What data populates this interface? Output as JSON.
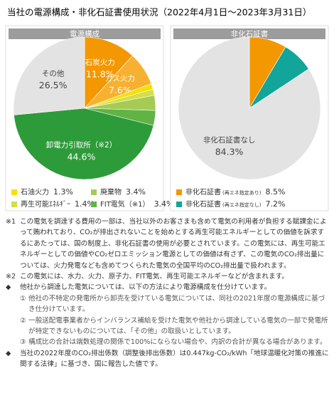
{
  "title": "当社の電源構成・非化石証書使用状況（2022年4月1日〜2023年3月31日）",
  "chart_data": [
    {
      "type": "pie",
      "title": "電源構成",
      "categories": [
        "石炭火力",
        "ガス火力",
        "石油火力",
        "再生可能ｴﾈﾙｷﾞｰ",
        "廃棄物",
        "FIT電気（※1）",
        "卸電力引取所（※2）",
        "その他"
      ],
      "values": [
        11.8,
        7.6,
        1.3,
        1.4,
        3.4,
        3.4,
        44.6,
        26.5
      ],
      "value_labels": [
        "11.8%",
        "7.6%",
        "1.3%",
        "1.4%",
        "3.4%",
        "3.4%",
        "44.6%",
        "26.5%"
      ],
      "colors": [
        "#f39800",
        "#f7b030",
        "#f5e100",
        "#d3de4a",
        "#a5cb55",
        "#5fb445",
        "#2e9b3a",
        "#e3e3e3"
      ],
      "label_position": [
        "inside",
        "inside",
        "legend",
        "legend",
        "legend",
        "legend",
        "inside",
        "inside"
      ]
    },
    {
      "type": "pie",
      "title": "非化石証書",
      "categories": [
        "非化石証書",
        "非化石証書",
        "非化石証書なし"
      ],
      "category_notes": [
        "(再エネ指定あり)",
        "(再エネ指定なし)",
        null
      ],
      "values": [
        8.5,
        7.2,
        84.3
      ],
      "value_labels": [
        "8.5%",
        "7.2%",
        "84.3%"
      ],
      "colors": [
        "#f39800",
        "#12a59a",
        "#e3e3e3"
      ],
      "label_position": [
        "legend",
        "legend",
        "inside"
      ]
    }
  ],
  "notes": [
    {
      "marker": "※1",
      "text": "この電気を調達する費用の一部は、当社以外のお客さまも含めて電気の利用者が負担する賦課金によって賄われており、CO₂が排出されないことを始めとする再生可能エネルギーとしての価値を訴求するにあたっては、国の制度上、非化石証書の使用が必要とされています。この電気には、再生可能エネルギーとしての価値やCO₂ゼロエミッション電源としての価値は有さず、この電気のCO₂排出量については、火力発電なども含めてつくられた電気の全国平均のCO₂排出量で扱われます。",
      "items": []
    },
    {
      "marker": "※2",
      "text": "この電気には、水力、火力、原子力、FIT電気、再生可能エネルギーなどが含まれます。",
      "items": []
    },
    {
      "marker": "◆",
      "text": "他社から調達した電気については、以下の方法により電源構成を仕分けています。",
      "items": [
        {
          "marker": "①",
          "text": "他社の不特定の発電所から卸売を受けている電気については、同社の2021年度の電源構成に基づき仕分けています。"
        },
        {
          "marker": "②",
          "text": "一般送配電事業者からインバランス補給を受けた電気や他社から調達している電気の一部で発電所が特定できないものについては、「その他」の取扱いとしています。"
        },
        {
          "marker": "③",
          "text": "構成比の合計は端数処理の関係で100%にならない場合や、内訳の合計が異なる場合があります。"
        }
      ]
    },
    {
      "marker": "◆",
      "text": "当社の2022年度のCO₂排出係数（調整後排出係数）は0.447kg-CO₂/kWh「地球温暖化対策の推進に関する法律」に基づき、国に報告した値です。",
      "items": []
    }
  ]
}
